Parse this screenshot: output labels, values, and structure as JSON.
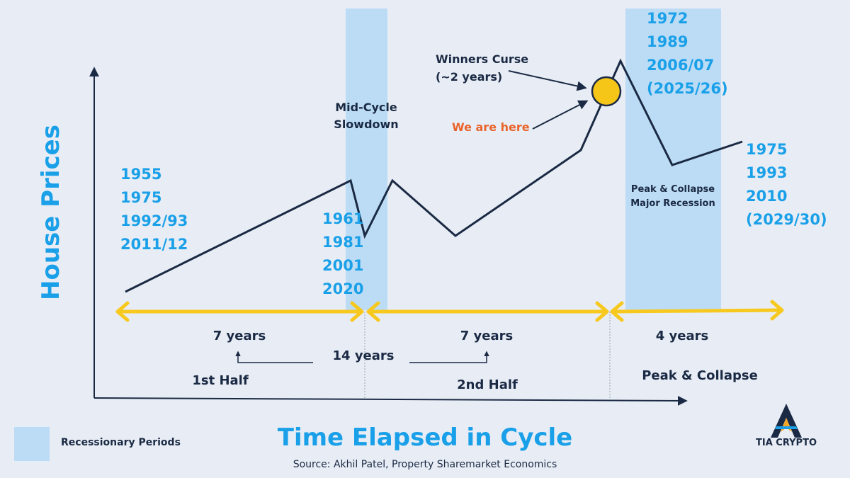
{
  "diagram": {
    "y_axis_label": "House Prices",
    "x_axis_label": "Time Elapsed in Cycle",
    "source": "Source: Akhil Patel, Property Sharemarket Economics",
    "legend": {
      "label": "Recessionary Periods",
      "color": "#bcdcf5"
    },
    "logo_text": "TIA CRYPTO",
    "colors": {
      "accent_blue": "#1aa0e8",
      "dark": "#1b2a44",
      "arrow_yellow": "#f7c81e",
      "marker": "#f5c518",
      "highlight": "#e8642b"
    },
    "annotations": {
      "mid_cycle": [
        "Mid-Cycle",
        "Slowdown"
      ],
      "winners_curse": [
        "Winners Curse",
        "(~2 years)"
      ],
      "we_are_here": "We are here",
      "peak_collapse_box": [
        "Peak & Collapse",
        "Major Recession"
      ]
    },
    "year_groups": {
      "start": [
        "1955",
        "1975",
        "1992/93",
        "2011/12"
      ],
      "mid": [
        "1961",
        "1981",
        "2001",
        "2020"
      ],
      "peak": [
        "1972",
        "1989",
        "2006/07",
        "(2025/26)"
      ],
      "end": [
        "1975",
        "1993",
        "2010",
        "(2029/30)"
      ]
    },
    "durations": {
      "first": "7 years",
      "second": "7 years",
      "third": "4 years",
      "total": "14 years"
    },
    "phases": {
      "first_half": "1st Half",
      "second_half": "2nd Half",
      "peak_collapse": "Peak & Collapse"
    }
  }
}
